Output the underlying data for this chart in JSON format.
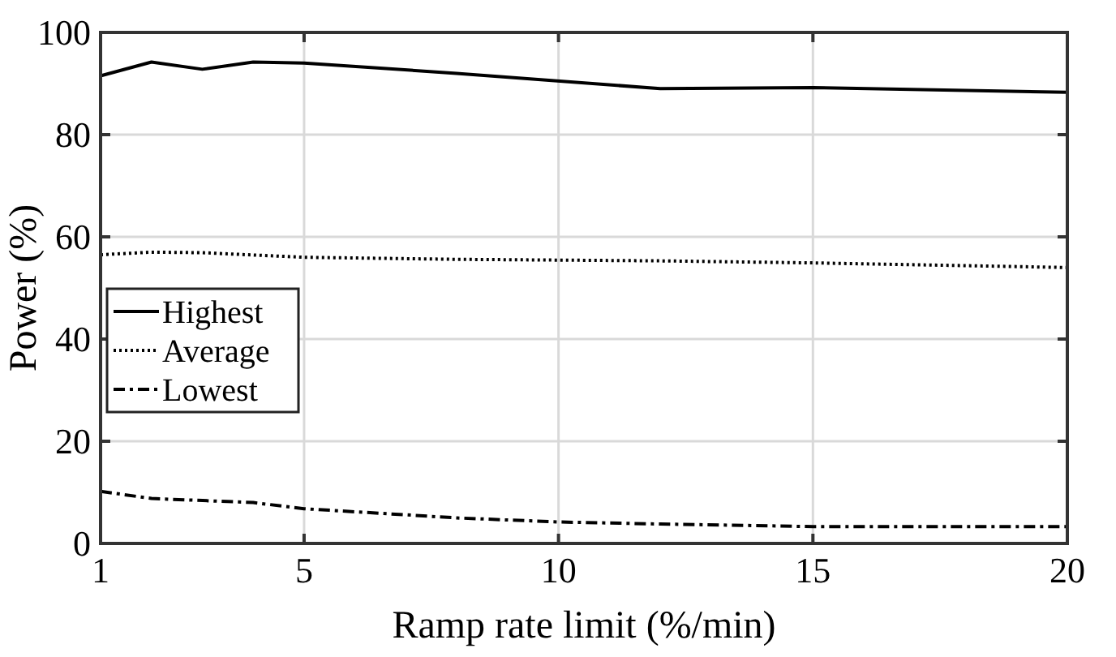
{
  "chart_data": {
    "type": "line",
    "xlabel": "Ramp rate limit (%/min)",
    "ylabel": "Power (%)",
    "xlim": [
      1,
      20
    ],
    "xticks": [
      1,
      5,
      10,
      15,
      20
    ],
    "ylim": [
      0,
      100
    ],
    "yticks": [
      0,
      20,
      40,
      60,
      80,
      100
    ],
    "grid": true,
    "legend": "left",
    "series": [
      {
        "name": "Highest",
        "color": "#000000",
        "line_style": "solid",
        "x": [
          1,
          2,
          3,
          4,
          5,
          8,
          12,
          15,
          20
        ],
        "values": [
          91.5,
          94.2,
          92.8,
          94.2,
          94,
          92,
          89,
          89.2,
          88.3
        ]
      },
      {
        "name": "Average",
        "color": "#000000",
        "line_style": "dotted",
        "x": [
          1,
          2,
          3,
          5,
          8,
          12,
          15,
          20
        ],
        "values": [
          56.5,
          57,
          56.9,
          56,
          55.6,
          55.3,
          54.9,
          54
        ]
      },
      {
        "name": "Lowest",
        "color": "#000000",
        "line_style": "dashdot",
        "x": [
          1,
          2,
          4,
          5,
          8,
          10,
          12,
          15,
          20
        ],
        "values": [
          10.2,
          8.8,
          8,
          6.8,
          5,
          4.2,
          3.8,
          3.3,
          3.3
        ]
      }
    ]
  }
}
